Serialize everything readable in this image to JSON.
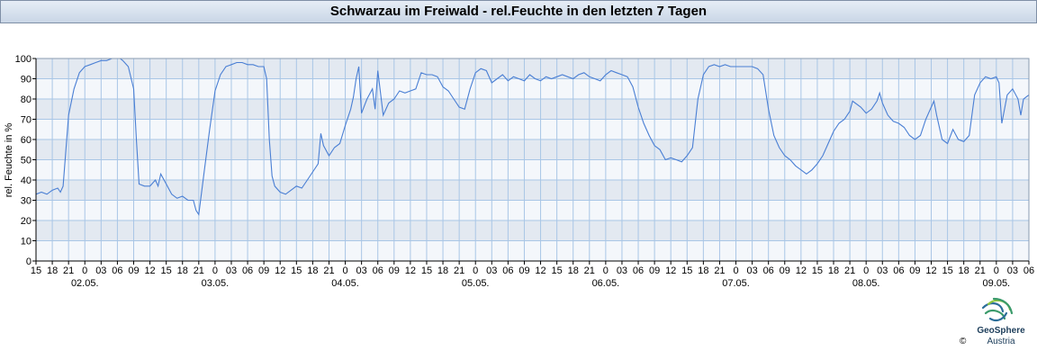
{
  "title": "Schwarzau im Freiwald - rel.Feuchte in den letzten 7 Tagen",
  "logo": {
    "name": "GeoSphere",
    "sub": "Austria",
    "copyright": "©"
  },
  "colors": {
    "line": "#4a7fd4",
    "grid": "#a9c6e6",
    "band_dark": "#e3e9f1",
    "band_light": "#f4f7fb",
    "axis": "#000000"
  },
  "chart_data": {
    "type": "line",
    "title": "Schwarzau im Freiwald - rel.Feuchte in den letzten 7 Tagen",
    "ylabel": "rel. Feuchte in %",
    "xlabel": "",
    "ylim": [
      0,
      100
    ],
    "yticks": [
      0,
      10,
      20,
      30,
      40,
      50,
      60,
      70,
      80,
      90,
      100
    ],
    "x_unit": "hours since 01.05. 15:00",
    "xlim": [
      0,
      183
    ],
    "hour_ticks": [
      "15",
      "18",
      "21",
      "0",
      "03",
      "06",
      "09",
      "12",
      "15",
      "18",
      "21",
      "0",
      "03",
      "06",
      "09",
      "12",
      "15",
      "18",
      "21",
      "0",
      "03",
      "06",
      "09",
      "12",
      "15",
      "18",
      "21",
      "0",
      "03",
      "06",
      "09",
      "12",
      "15",
      "18",
      "21",
      "0",
      "03",
      "06",
      "09",
      "12",
      "15",
      "18",
      "21",
      "0",
      "03",
      "06",
      "09",
      "12",
      "15",
      "18",
      "21",
      "0",
      "03",
      "06",
      "09",
      "12",
      "15",
      "18",
      "21",
      "0",
      "03",
      "06"
    ],
    "date_labels": [
      {
        "label": "02.05.",
        "hour": 9
      },
      {
        "label": "03.05.",
        "hour": 33
      },
      {
        "label": "04.05.",
        "hour": 57
      },
      {
        "label": "05.05.",
        "hour": 81
      },
      {
        "label": "06.05.",
        "hour": 105
      },
      {
        "label": "07.05.",
        "hour": 129
      },
      {
        "label": "08.05.",
        "hour": 153
      },
      {
        "label": "09.05.",
        "hour": 177
      }
    ],
    "grid": true,
    "series": [
      {
        "name": "",
        "points": [
          [
            0,
            33
          ],
          [
            1,
            34
          ],
          [
            2,
            33
          ],
          [
            3,
            35
          ],
          [
            4,
            36
          ],
          [
            4.5,
            34
          ],
          [
            5,
            37
          ],
          [
            6,
            72
          ],
          [
            7,
            85
          ],
          [
            8,
            93
          ],
          [
            9,
            96
          ],
          [
            10,
            97
          ],
          [
            11,
            98
          ],
          [
            12,
            99
          ],
          [
            13,
            99
          ],
          [
            14,
            100
          ],
          [
            15,
            100
          ],
          [
            15.5,
            100
          ],
          [
            16,
            99
          ],
          [
            17,
            96
          ],
          [
            18,
            85
          ],
          [
            18.5,
            60
          ],
          [
            19,
            38
          ],
          [
            20,
            37
          ],
          [
            21,
            37
          ],
          [
            22,
            40
          ],
          [
            22.5,
            37
          ],
          [
            23,
            43
          ],
          [
            24,
            38
          ],
          [
            25,
            33
          ],
          [
            26,
            31
          ],
          [
            27,
            32
          ],
          [
            28,
            30
          ],
          [
            29,
            30
          ],
          [
            29.5,
            25
          ],
          [
            30,
            23
          ],
          [
            31,
            44
          ],
          [
            32,
            65
          ],
          [
            33,
            84
          ],
          [
            34,
            92
          ],
          [
            35,
            96
          ],
          [
            36,
            97
          ],
          [
            37,
            98
          ],
          [
            38,
            98
          ],
          [
            39,
            97
          ],
          [
            40,
            97
          ],
          [
            41,
            96
          ],
          [
            42,
            96
          ],
          [
            42.5,
            90
          ],
          [
            43,
            60
          ],
          [
            43.5,
            42
          ],
          [
            44,
            37
          ],
          [
            45,
            34
          ],
          [
            46,
            33
          ],
          [
            47,
            35
          ],
          [
            48,
            37
          ],
          [
            49,
            36
          ],
          [
            50,
            40
          ],
          [
            51,
            44
          ],
          [
            52,
            48
          ],
          [
            52.5,
            63
          ],
          [
            53,
            57
          ],
          [
            54,
            52
          ],
          [
            55,
            56
          ],
          [
            56,
            58
          ],
          [
            57,
            67
          ],
          [
            58,
            75
          ],
          [
            58.5,
            81
          ],
          [
            59,
            90
          ],
          [
            59.5,
            96
          ],
          [
            60,
            73
          ],
          [
            61,
            80
          ],
          [
            62,
            85
          ],
          [
            62.5,
            75
          ],
          [
            63,
            94
          ],
          [
            64,
            72
          ],
          [
            65,
            78
          ],
          [
            66,
            80
          ],
          [
            67,
            84
          ],
          [
            68,
            83
          ],
          [
            69,
            84
          ],
          [
            70,
            85
          ],
          [
            71,
            93
          ],
          [
            72,
            92
          ],
          [
            73,
            92
          ],
          [
            74,
            91
          ],
          [
            75,
            86
          ],
          [
            76,
            84
          ],
          [
            77,
            80
          ],
          [
            78,
            76
          ],
          [
            79,
            75
          ],
          [
            80,
            85
          ],
          [
            81,
            93
          ],
          [
            82,
            95
          ],
          [
            83,
            94
          ],
          [
            84,
            88
          ],
          [
            85,
            90
          ],
          [
            86,
            92
          ],
          [
            87,
            89
          ],
          [
            88,
            91
          ],
          [
            89,
            90
          ],
          [
            90,
            89
          ],
          [
            91,
            92
          ],
          [
            92,
            90
          ],
          [
            93,
            89
          ],
          [
            94,
            91
          ],
          [
            95,
            90
          ],
          [
            96,
            91
          ],
          [
            97,
            92
          ],
          [
            98,
            91
          ],
          [
            99,
            90
          ],
          [
            100,
            92
          ],
          [
            101,
            93
          ],
          [
            102,
            91
          ],
          [
            103,
            90
          ],
          [
            104,
            89
          ],
          [
            105,
            92
          ],
          [
            106,
            94
          ],
          [
            107,
            93
          ],
          [
            108,
            92
          ],
          [
            109,
            91
          ],
          [
            110,
            86
          ],
          [
            111,
            76
          ],
          [
            112,
            68
          ],
          [
            113,
            62
          ],
          [
            114,
            57
          ],
          [
            115,
            55
          ],
          [
            116,
            50
          ],
          [
            117,
            51
          ],
          [
            118,
            50
          ],
          [
            119,
            49
          ],
          [
            120,
            52
          ],
          [
            121,
            56
          ],
          [
            122,
            80
          ],
          [
            123,
            92
          ],
          [
            124,
            96
          ],
          [
            125,
            97
          ],
          [
            126,
            96
          ],
          [
            127,
            97
          ],
          [
            128,
            96
          ],
          [
            129,
            96
          ],
          [
            130,
            96
          ],
          [
            131,
            96
          ],
          [
            132,
            96
          ],
          [
            133,
            95
          ],
          [
            134,
            92
          ],
          [
            135,
            75
          ],
          [
            136,
            62
          ],
          [
            137,
            56
          ],
          [
            138,
            52
          ],
          [
            139,
            50
          ],
          [
            140,
            47
          ],
          [
            141,
            45
          ],
          [
            142,
            43
          ],
          [
            143,
            45
          ],
          [
            144,
            48
          ],
          [
            145,
            52
          ],
          [
            146,
            58
          ],
          [
            147,
            64
          ],
          [
            148,
            68
          ],
          [
            149,
            70
          ],
          [
            150,
            74
          ],
          [
            150.5,
            79
          ],
          [
            151,
            78
          ],
          [
            152,
            76
          ],
          [
            153,
            73
          ],
          [
            154,
            75
          ],
          [
            155,
            79
          ],
          [
            155.5,
            83
          ],
          [
            156,
            78
          ],
          [
            157,
            72
          ],
          [
            158,
            69
          ],
          [
            159,
            68
          ],
          [
            160,
            66
          ],
          [
            161,
            62
          ],
          [
            162,
            60
          ],
          [
            163,
            62
          ],
          [
            164,
            70
          ],
          [
            165,
            76
          ],
          [
            165.5,
            79
          ],
          [
            166,
            72
          ],
          [
            167,
            60
          ],
          [
            168,
            58
          ],
          [
            169,
            65
          ],
          [
            170,
            60
          ],
          [
            171,
            59
          ],
          [
            172,
            62
          ],
          [
            173,
            82
          ],
          [
            174,
            88
          ],
          [
            175,
            91
          ],
          [
            176,
            90
          ],
          [
            177,
            91
          ],
          [
            177.5,
            88
          ],
          [
            178,
            68
          ],
          [
            179,
            82
          ],
          [
            180,
            85
          ],
          [
            181,
            80
          ],
          [
            181.5,
            72
          ],
          [
            182,
            80
          ],
          [
            183,
            82
          ]
        ]
      }
    ]
  }
}
